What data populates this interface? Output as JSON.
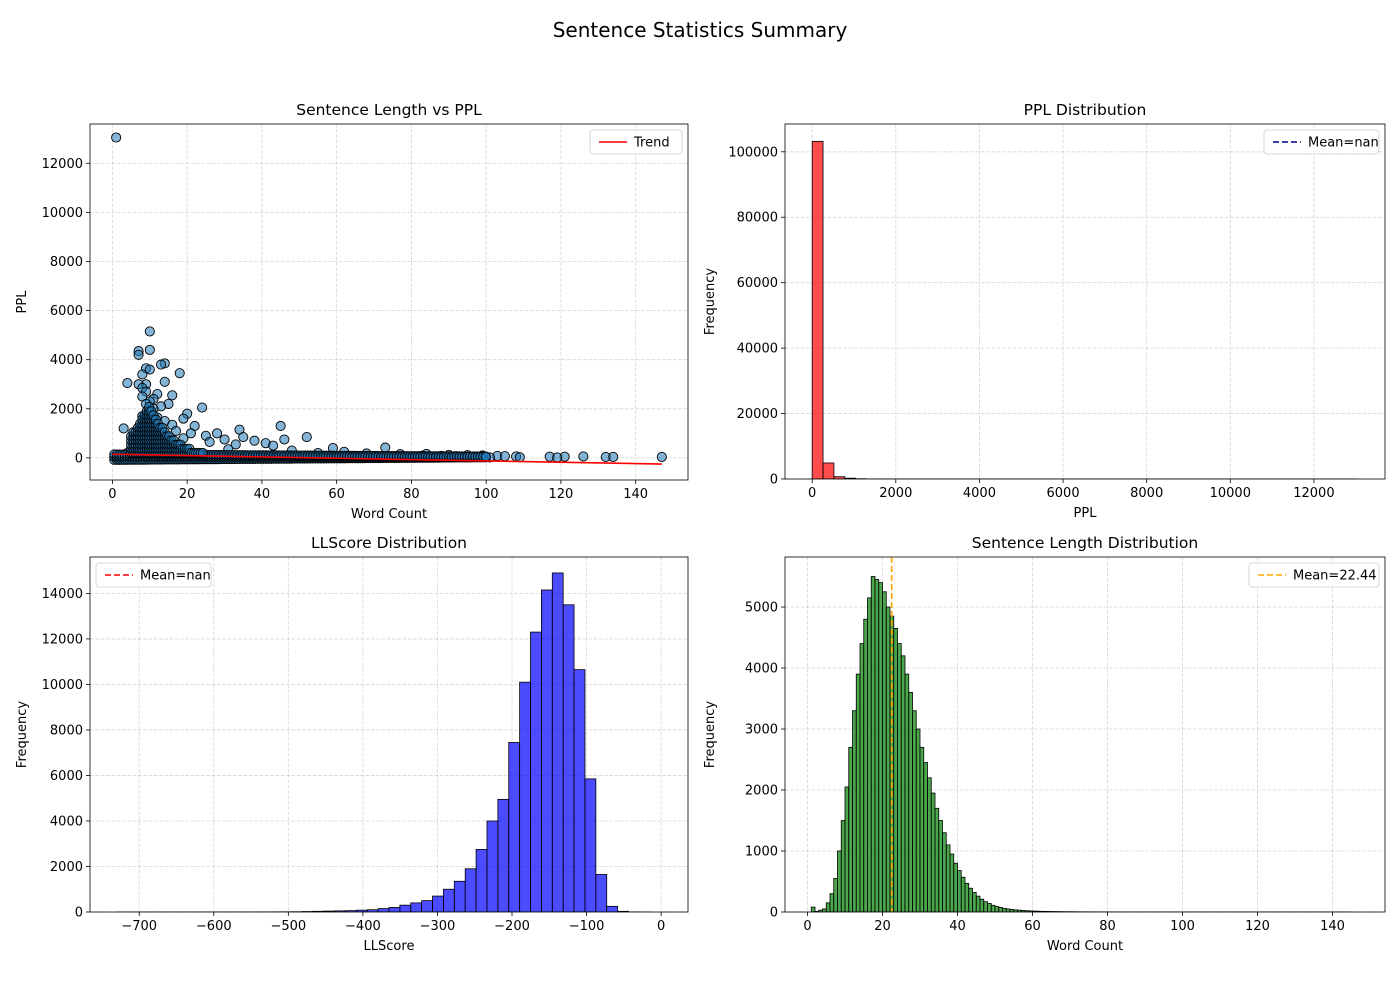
{
  "figure": {
    "suptitle": "Sentence Statistics Summary"
  },
  "chart_data": [
    {
      "id": "scatter",
      "type": "scatter",
      "title": "Sentence Length vs PPL",
      "xlabel": "Word Count",
      "ylabel": "PPL",
      "xlim": [
        -6,
        154
      ],
      "ylim": [
        -900,
        13600
      ],
      "xticks": [
        0,
        20,
        40,
        60,
        80,
        100,
        120,
        140
      ],
      "yticks": [
        0,
        2000,
        4000,
        6000,
        8000,
        10000,
        12000
      ],
      "grid": true,
      "legend": {
        "position": "top-right",
        "entries": [
          {
            "label": "Trend",
            "color": "#ff0000",
            "style": "solid"
          }
        ]
      },
      "point_color": "#1f77b4",
      "points": [
        [
          1,
          13050
        ],
        [
          10,
          5150
        ],
        [
          7,
          4350
        ],
        [
          10,
          4400
        ],
        [
          7,
          4200
        ],
        [
          14,
          3850
        ],
        [
          13,
          3800
        ],
        [
          9,
          3650
        ],
        [
          10,
          3600
        ],
        [
          18,
          3450
        ],
        [
          8,
          3400
        ],
        [
          14,
          3100
        ],
        [
          4,
          3050
        ],
        [
          9,
          3000
        ],
        [
          7,
          3000
        ],
        [
          8,
          2850
        ],
        [
          9,
          2700
        ],
        [
          12,
          2600
        ],
        [
          16,
          2550
        ],
        [
          8,
          2500
        ],
        [
          11,
          2400
        ],
        [
          10,
          2300
        ],
        [
          15,
          2200
        ],
        [
          9,
          2200
        ],
        [
          13,
          2100
        ],
        [
          24,
          2050
        ],
        [
          11,
          2000
        ],
        [
          20,
          1800
        ],
        [
          8,
          1700
        ],
        [
          12,
          1650
        ],
        [
          19,
          1600
        ],
        [
          14,
          1500
        ],
        [
          9,
          1400
        ],
        [
          16,
          1350
        ],
        [
          22,
          1300
        ],
        [
          45,
          1300
        ],
        [
          11,
          1200
        ],
        [
          3,
          1200
        ],
        [
          34,
          1150
        ],
        [
          17,
          1100
        ],
        [
          21,
          1000
        ],
        [
          28,
          1000
        ],
        [
          13,
          950
        ],
        [
          25,
          900
        ],
        [
          35,
          850
        ],
        [
          52,
          850
        ],
        [
          19,
          800
        ],
        [
          30,
          750
        ],
        [
          46,
          750
        ],
        [
          38,
          700
        ],
        [
          26,
          650
        ],
        [
          41,
          600
        ],
        [
          33,
          550
        ],
        [
          15,
          500
        ],
        [
          43,
          500
        ],
        [
          73,
          420
        ],
        [
          59,
          400
        ],
        [
          31,
          350
        ],
        [
          48,
          300
        ],
        [
          62,
          250
        ],
        [
          4,
          200
        ],
        [
          20,
          200
        ],
        [
          55,
          200
        ],
        [
          68,
          180
        ],
        [
          84,
          160
        ],
        [
          77,
          150
        ],
        [
          90,
          120
        ],
        [
          95,
          110
        ],
        [
          99,
          100
        ],
        [
          103,
          80
        ],
        [
          105,
          70
        ],
        [
          108,
          60
        ],
        [
          117,
          50
        ],
        [
          121,
          50
        ],
        [
          126,
          60
        ],
        [
          132,
          40
        ],
        [
          134,
          40
        ],
        [
          147,
          40
        ],
        [
          83,
          90
        ],
        [
          88,
          80
        ],
        [
          92,
          70
        ],
        [
          97,
          60
        ],
        [
          86,
          50
        ],
        [
          79,
          40
        ],
        [
          72,
          50
        ],
        [
          66,
          60
        ],
        [
          58,
          50
        ],
        [
          50,
          40
        ],
        [
          44,
          30
        ],
        [
          37,
          30
        ],
        [
          2,
          100
        ],
        [
          5,
          80
        ],
        [
          6,
          60
        ],
        [
          1,
          0
        ],
        [
          2,
          0
        ],
        [
          3,
          20
        ],
        [
          6,
          0
        ],
        [
          40,
          100
        ],
        [
          63,
          20
        ],
        [
          101,
          20
        ],
        [
          109,
          30
        ],
        [
          119,
          20
        ]
      ],
      "trend": {
        "x": [
          0,
          147
        ],
        "y": [
          150,
          -250
        ]
      }
    },
    {
      "id": "ppl",
      "type": "bar",
      "title": "PPL Distribution",
      "xlabel": "PPL",
      "ylabel": "Frequency",
      "xlim": [
        -650,
        13700
      ],
      "ylim": [
        0,
        108500
      ],
      "xticks": [
        0,
        2000,
        4000,
        6000,
        8000,
        10000,
        12000
      ],
      "yticks": [
        0,
        20000,
        40000,
        60000,
        80000,
        100000
      ],
      "grid": true,
      "legend": {
        "position": "top-right",
        "entries": [
          {
            "label": "Mean=nan",
            "color": "#00008b",
            "style": "dashed"
          }
        ]
      },
      "bar_color": "#ff0000",
      "bin_start": 0,
      "bin_width": 260,
      "values": [
        103200,
        4900,
        700,
        250,
        80,
        30,
        15,
        10,
        5,
        3,
        2,
        2,
        1,
        1,
        1,
        1,
        1,
        1,
        1,
        1,
        1,
        1,
        1,
        1,
        1,
        1,
        1,
        1,
        1,
        1,
        1,
        1,
        1,
        1,
        1,
        1,
        1,
        1,
        1,
        1,
        1,
        1,
        1,
        1,
        1,
        1,
        1,
        1,
        1,
        1
      ]
    },
    {
      "id": "llscore",
      "type": "bar",
      "title": "LLScore Distribution",
      "xlabel": "LLScore",
      "ylabel": "Frequency",
      "xlim": [
        -766,
        36
      ],
      "ylim": [
        0,
        15600
      ],
      "xticks": [
        -700,
        -600,
        -500,
        -400,
        -300,
        -200,
        -100,
        0
      ],
      "yticks": [
        0,
        2000,
        4000,
        6000,
        8000,
        10000,
        12000,
        14000
      ],
      "grid": true,
      "legend": {
        "position": "top-left",
        "entries": [
          {
            "label": "Mean=nan",
            "color": "#ff0000",
            "style": "dashed"
          }
        ]
      },
      "bar_color": "#0000ff",
      "bin_start": -730,
      "bin_width": 14.6,
      "values": [
        1,
        1,
        1,
        1,
        1,
        2,
        2,
        2,
        2,
        3,
        3,
        3,
        4,
        5,
        6,
        8,
        10,
        20,
        30,
        40,
        50,
        60,
        80,
        100,
        150,
        200,
        300,
        400,
        500,
        700,
        1000,
        1350,
        1900,
        2750,
        4000,
        4950,
        7450,
        10100,
        12300,
        14150,
        14900,
        13500,
        10650,
        5850,
        1650,
        250,
        30,
        5,
        1,
        0
      ]
    },
    {
      "id": "length",
      "type": "bar",
      "title": "Sentence Length Distribution",
      "xlabel": "Word Count",
      "ylabel": "Frequency",
      "xlim": [
        -6,
        154
      ],
      "ylim": [
        0,
        5820
      ],
      "xticks": [
        0,
        20,
        40,
        60,
        80,
        100,
        120,
        140
      ],
      "yticks": [
        0,
        1000,
        2000,
        3000,
        4000,
        5000
      ],
      "grid": true,
      "legend": {
        "position": "top-right",
        "entries": [
          {
            "label": "Mean=22.44",
            "color": "#ffa500",
            "style": "dashed"
          }
        ]
      },
      "bar_color": "#008000",
      "mean_line": 22.44,
      "bin_start": 1,
      "bin_width": 1,
      "values": [
        80,
        10,
        30,
        50,
        150,
        300,
        550,
        1000,
        1500,
        2050,
        2700,
        3300,
        3900,
        4400,
        4800,
        5150,
        5500,
        5450,
        5400,
        5250,
        5000,
        4850,
        4650,
        4400,
        4200,
        3900,
        3600,
        3300,
        3000,
        2700,
        2450,
        2200,
        1950,
        1700,
        1500,
        1300,
        1100,
        950,
        800,
        680,
        570,
        470,
        390,
        320,
        260,
        210,
        170,
        140,
        110,
        90,
        75,
        60,
        50,
        42,
        35,
        30,
        25,
        21,
        18,
        15,
        13,
        11,
        10,
        9,
        8,
        7,
        6,
        5,
        5,
        4,
        4,
        3,
        3,
        3,
        2,
        2,
        2,
        2,
        2,
        2,
        1,
        1,
        1,
        1,
        1,
        1,
        1,
        1,
        1,
        1,
        1,
        1,
        1,
        1,
        1,
        1,
        1,
        1,
        1,
        1,
        1,
        1,
        1,
        1,
        1,
        1,
        1,
        1,
        1,
        1,
        1,
        1,
        1,
        1,
        1,
        1,
        1,
        1,
        1,
        1,
        1,
        1,
        1,
        1,
        1,
        1,
        1,
        1,
        1,
        1,
        1,
        1,
        1,
        1,
        1,
        1,
        1,
        1,
        1,
        1,
        1,
        1,
        1,
        1
      ]
    }
  ]
}
